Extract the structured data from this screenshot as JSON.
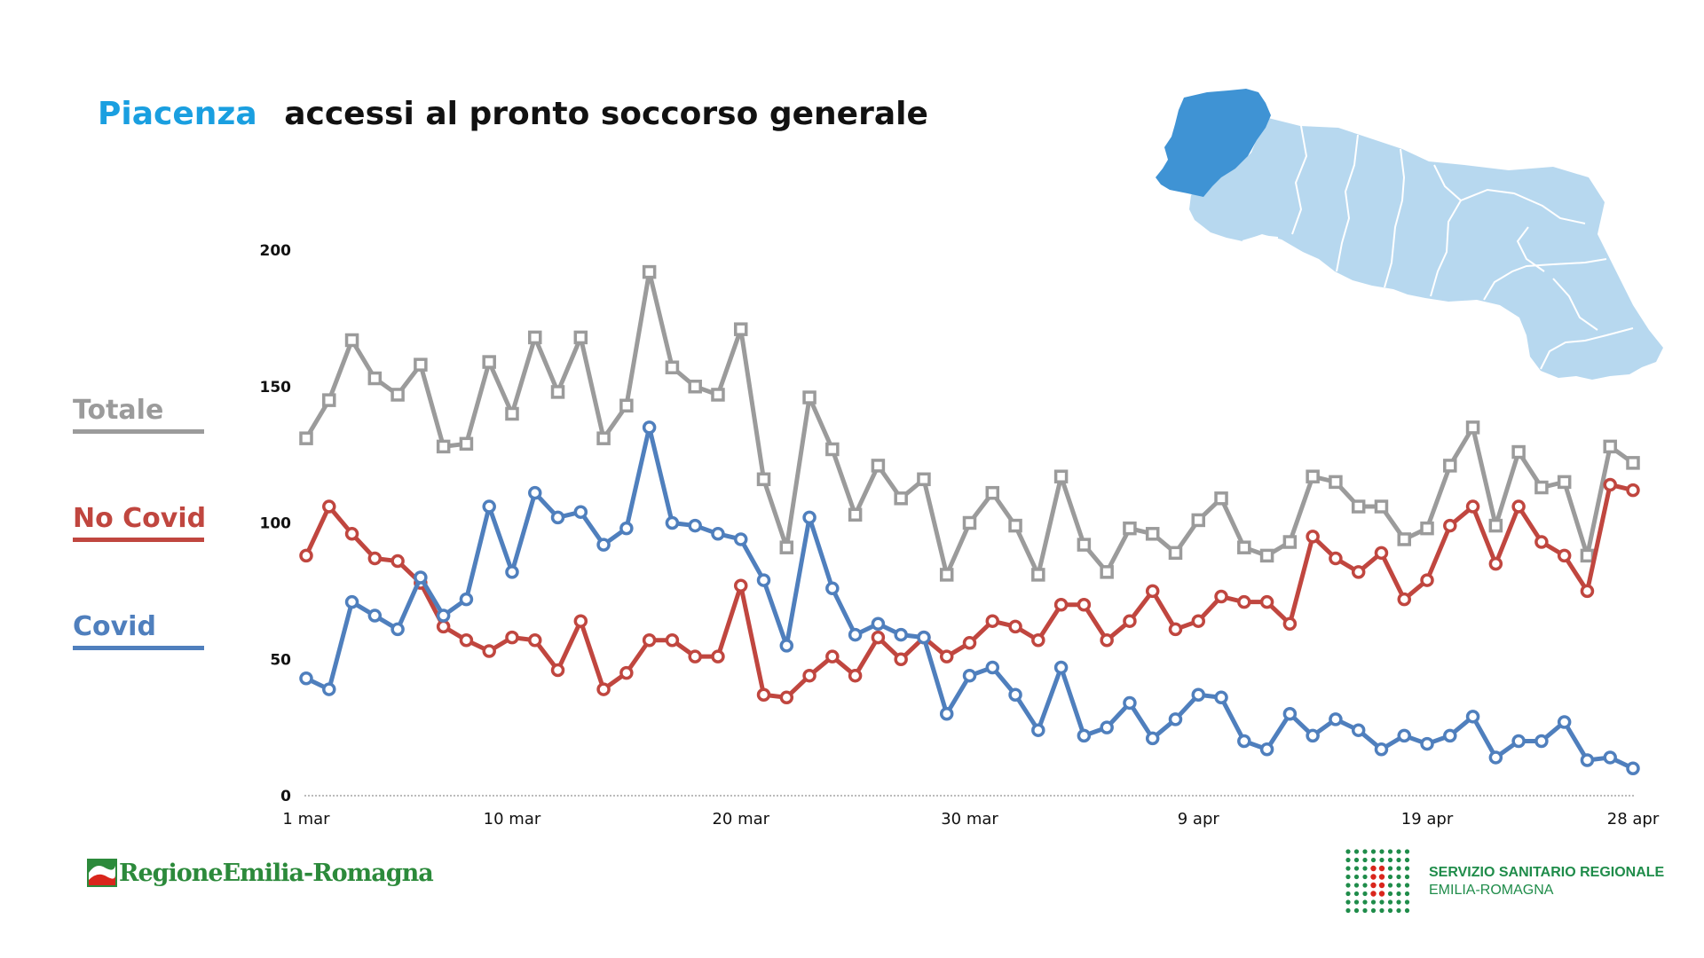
{
  "title": {
    "place": "Piacenza",
    "description": "accessi al pronto soccorso generale"
  },
  "legend": [
    {
      "label": "Totale",
      "color": "#9b9b9b"
    },
    {
      "label": "No Covid",
      "color": "#c0463f"
    },
    {
      "label": "Covid",
      "color": "#4f7fbd"
    }
  ],
  "logos": {
    "region": "RegioneEmilia-Romagna",
    "health_service_line1": "SERVIZIO SANITARIO REGIONALE",
    "health_service_line2": "EMILIA-ROMAGNA"
  },
  "map": {
    "highlight_color": "#3f93d4",
    "base_color": "#b7d8ef",
    "border_color": "#ffffff"
  },
  "chart_data": {
    "type": "line",
    "title": "accessi al pronto soccorso generale",
    "xlabel": "",
    "ylabel": "",
    "ylim": [
      0,
      200
    ],
    "yticks": [
      0,
      50,
      100,
      150,
      200
    ],
    "xticks": [
      {
        "index": 0,
        "label": "1 mar"
      },
      {
        "index": 9,
        "label": "10 mar"
      },
      {
        "index": 19,
        "label": "20 mar"
      },
      {
        "index": 29,
        "label": "30 mar"
      },
      {
        "index": 39,
        "label": "9 apr"
      },
      {
        "index": 49,
        "label": "19 apr"
      },
      {
        "index": 58,
        "label": "28 apr"
      }
    ],
    "grid": false,
    "series": [
      {
        "name": "Totale",
        "color": "#9b9b9b",
        "marker": "square",
        "values": [
          131,
          145,
          167,
          153,
          147,
          158,
          128,
          129,
          159,
          140,
          168,
          148,
          168,
          131,
          143,
          192,
          157,
          150,
          147,
          171,
          116,
          91,
          146,
          127,
          103,
          121,
          109,
          116,
          81,
          100,
          111,
          99,
          81,
          117,
          92,
          82,
          98,
          96,
          89,
          101,
          109,
          91,
          88,
          93,
          117,
          115,
          106,
          106,
          94,
          98,
          121,
          135,
          99,
          126,
          113,
          115,
          88,
          128,
          122
        ]
      },
      {
        "name": "No Covid",
        "color": "#c0463f",
        "marker": "circle",
        "values": [
          88,
          106,
          96,
          87,
          86,
          78,
          62,
          57,
          53,
          58,
          57,
          46,
          64,
          39,
          45,
          57,
          57,
          51,
          51,
          77,
          37,
          36,
          44,
          51,
          44,
          58,
          50,
          58,
          51,
          56,
          64,
          62,
          57,
          70,
          70,
          57,
          64,
          75,
          61,
          64,
          73,
          71,
          71,
          63,
          95,
          87,
          82,
          89,
          72,
          79,
          99,
          106,
          85,
          106,
          93,
          88,
          75,
          114,
          112
        ]
      },
      {
        "name": "Covid",
        "color": "#4f7fbd",
        "marker": "circle",
        "values": [
          43,
          39,
          71,
          66,
          61,
          80,
          66,
          72,
          106,
          82,
          111,
          102,
          104,
          92,
          98,
          135,
          100,
          99,
          96,
          94,
          79,
          55,
          102,
          76,
          59,
          63,
          59,
          58,
          30,
          44,
          47,
          37,
          24,
          47,
          22,
          25,
          34,
          21,
          28,
          37,
          36,
          20,
          17,
          30,
          22,
          28,
          24,
          17,
          22,
          19,
          22,
          29,
          14,
          20,
          20,
          27,
          13,
          14,
          10
        ]
      }
    ]
  }
}
